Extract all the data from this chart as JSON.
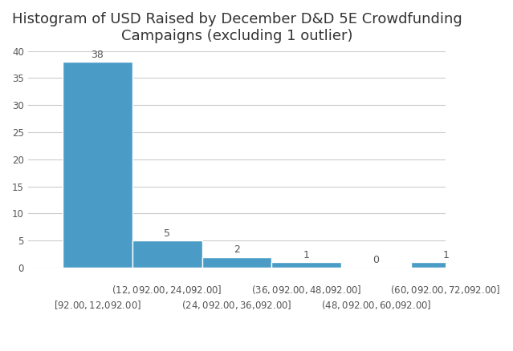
{
  "title": "Histogram of USD Raised by December D&D 5E Crowdfunding\nCampaigns (excluding 1 outlier)",
  "bar_labels_top": [
    "($12,092.00 , $24,092.00]",
    "($36,092.00 , $48,092.00]",
    "($60,092.00 , $72,092.00]"
  ],
  "bar_labels_bottom": [
    "[$92.00 , $12,092.00]",
    "($24,092.00 , $36,092.00]",
    "($48,092.00 , $60,092.00]"
  ],
  "counts": [
    38,
    5,
    2,
    1,
    0,
    1
  ],
  "bar_color": "#4a9cc7",
  "bar_edge_color": "#ffffff",
  "background_color": "#ffffff",
  "ylim": [
    0,
    40
  ],
  "yticks": [
    0,
    5,
    10,
    15,
    20,
    25,
    30,
    35,
    40
  ],
  "title_fontsize": 13,
  "tick_label_fontsize": 8.5,
  "count_label_fontsize": 9,
  "grid_color": "#cccccc",
  "bin_edges": [
    0,
    1,
    2,
    3,
    4,
    5,
    6
  ]
}
